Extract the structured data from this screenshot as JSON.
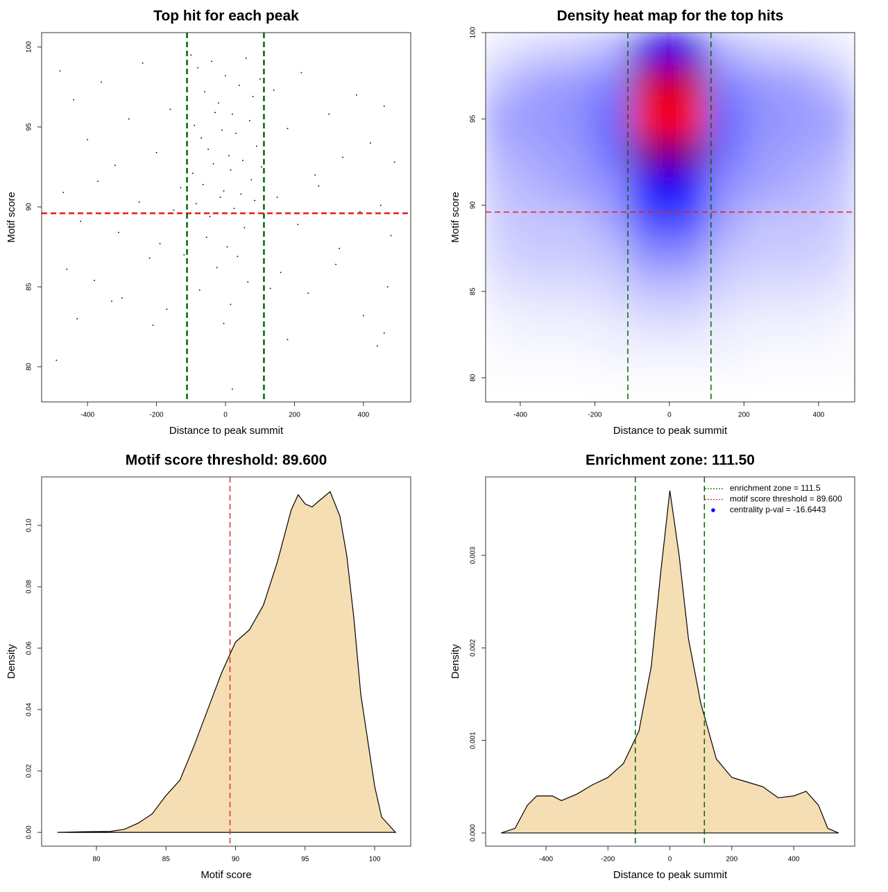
{
  "chart_data": [
    {
      "type": "scatter",
      "title": "Top hit for each peak",
      "xlabel": "Distance to peak summit",
      "ylabel": "Motif score",
      "xlim": [
        -533,
        537
      ],
      "ylim": [
        77.8,
        100.9
      ],
      "xticks": [
        -400,
        -200,
        0,
        200,
        400
      ],
      "yticks": [
        80,
        85,
        90,
        95,
        100
      ],
      "color": "#000000",
      "hlines": [
        {
          "value": 89.6,
          "color": "#e41a1c"
        }
      ],
      "vlines": [
        {
          "value": -111.5,
          "color": "#006400"
        },
        {
          "value": 111.5,
          "color": "#006400"
        }
      ],
      "x": [
        -100,
        -80,
        -60,
        -40,
        -20,
        0,
        20,
        40,
        60,
        80,
        100,
        -90,
        -70,
        -50,
        -30,
        -10,
        10,
        30,
        50,
        70,
        90,
        -95,
        -65,
        -35,
        -5,
        15,
        45,
        75,
        105,
        -85,
        -45,
        -15,
        25,
        55,
        85,
        -55,
        5,
        35,
        -25,
        65,
        -75,
        15,
        -5,
        20,
        -480,
        -440,
        -400,
        -360,
        -320,
        -280,
        -240,
        -200,
        -160,
        -130,
        140,
        180,
        220,
        260,
        300,
        340,
        380,
        420,
        460,
        490,
        -470,
        -420,
        -370,
        -310,
        -250,
        -190,
        -150,
        150,
        210,
        270,
        330,
        390,
        450,
        480,
        -460,
        -380,
        -300,
        -220,
        -170,
        160,
        240,
        320,
        400,
        470,
        -490,
        -430,
        -330,
        -120,
        130,
        440,
        460,
        -210,
        180
      ],
      "values": [
        99.5,
        98.7,
        97.2,
        99.1,
        96.5,
        98.2,
        95.8,
        97.6,
        99.3,
        96.9,
        98.0,
        95.1,
        94.3,
        93.6,
        95.9,
        94.8,
        93.2,
        94.6,
        92.9,
        95.4,
        93.8,
        92.1,
        91.4,
        92.7,
        91.0,
        92.3,
        90.8,
        91.7,
        92.5,
        90.2,
        89.4,
        90.6,
        89.9,
        88.7,
        90.4,
        88.1,
        87.5,
        86.9,
        86.2,
        85.3,
        84.8,
        83.9,
        82.7,
        78.6,
        98.5,
        96.7,
        94.2,
        97.8,
        92.6,
        95.5,
        99.0,
        93.4,
        96.1,
        91.2,
        97.3,
        94.9,
        98.4,
        92.0,
        95.8,
        93.1,
        97.0,
        94.0,
        96.3,
        92.8,
        90.9,
        89.1,
        91.6,
        88.4,
        90.3,
        87.7,
        89.8,
        90.6,
        88.9,
        91.3,
        87.4,
        89.7,
        90.1,
        88.2,
        86.1,
        85.4,
        84.3,
        86.8,
        83.6,
        85.9,
        84.6,
        86.4,
        83.2,
        85.0,
        80.4,
        83.0,
        84.1,
        87.0,
        84.9,
        81.3,
        82.1,
        82.6,
        81.7
      ]
    },
    {
      "type": "heatmap",
      "title": "Density heat map for the top hits",
      "xlabel": "Distance to peak summit",
      "ylabel": "Motif score",
      "xlim": [
        -493,
        497
      ],
      "ylim": [
        78.6,
        100
      ],
      "xticks": [
        -400,
        -200,
        0,
        200,
        400
      ],
      "yticks": [
        80,
        85,
        90,
        95,
        100
      ],
      "colors": [
        "#ffffff",
        "#0000ff",
        "#ff0000"
      ],
      "hlines": [
        {
          "value": 89.6,
          "color": "#e41a1c"
        }
      ],
      "vlines": [
        {
          "value": -111.5,
          "color": "#006400"
        },
        {
          "value": 111.5,
          "color": "#006400"
        }
      ],
      "x": [
        -450,
        -350,
        -250,
        -150,
        -50,
        50,
        150,
        250,
        350,
        450
      ],
      "y": [
        99,
        97,
        95,
        93,
        91,
        89,
        87,
        85,
        83,
        81,
        79
      ],
      "z": [
        [
          0.05,
          0.08,
          0.1,
          0.15,
          0.55,
          0.55,
          0.15,
          0.1,
          0.08,
          0.05
        ],
        [
          0.12,
          0.18,
          0.2,
          0.25,
          0.9,
          0.9,
          0.25,
          0.2,
          0.18,
          0.12
        ],
        [
          0.18,
          0.2,
          0.22,
          0.3,
          1.0,
          1.0,
          0.3,
          0.22,
          0.2,
          0.18
        ],
        [
          0.15,
          0.18,
          0.2,
          0.28,
          0.75,
          0.75,
          0.28,
          0.2,
          0.18,
          0.15
        ],
        [
          0.12,
          0.15,
          0.18,
          0.22,
          0.5,
          0.5,
          0.22,
          0.18,
          0.15,
          0.12
        ],
        [
          0.1,
          0.12,
          0.12,
          0.18,
          0.35,
          0.35,
          0.18,
          0.12,
          0.12,
          0.1
        ],
        [
          0.08,
          0.1,
          0.1,
          0.12,
          0.22,
          0.22,
          0.12,
          0.1,
          0.1,
          0.08
        ],
        [
          0.05,
          0.06,
          0.06,
          0.08,
          0.12,
          0.12,
          0.08,
          0.06,
          0.06,
          0.05
        ],
        [
          0.02,
          0.03,
          0.03,
          0.04,
          0.06,
          0.06,
          0.04,
          0.03,
          0.03,
          0.02
        ],
        [
          0.01,
          0.01,
          0.01,
          0.02,
          0.02,
          0.02,
          0.02,
          0.01,
          0.01,
          0.01
        ],
        [
          0,
          0,
          0,
          0,
          0,
          0,
          0,
          0,
          0,
          0
        ]
      ]
    },
    {
      "type": "density",
      "title": "Motif score threshold: 89.600",
      "xlabel": "Motif score",
      "ylabel": "Density",
      "xlim": [
        76.06,
        102.59
      ],
      "ylim": [
        -0.0045,
        0.1158
      ],
      "xticks": [
        80,
        85,
        90,
        95,
        100
      ],
      "yticks": [
        {
          "value": 0,
          "label": "0.00"
        },
        {
          "value": 0.02,
          "label": "0.02"
        },
        {
          "value": 0.04,
          "label": "0.04"
        },
        {
          "value": 0.06,
          "label": "0.06"
        },
        {
          "value": 0.08,
          "label": "0.08"
        },
        {
          "value": 0.1,
          "label": "0.10"
        }
      ],
      "color": "#f5deb3",
      "vlines": [
        {
          "value": 89.6,
          "color": "#cd3333"
        }
      ],
      "x": [
        77.2,
        79,
        81,
        82,
        83,
        84,
        85,
        86,
        87,
        88,
        89,
        90,
        91,
        92,
        93,
        94,
        94.5,
        95,
        95.5,
        96,
        96.8,
        97.5,
        98,
        98.5,
        99,
        100,
        100.5,
        101.5
      ],
      "values": [
        0,
        0.0002,
        0.0003,
        0.001,
        0.003,
        0.006,
        0.012,
        0.017,
        0.028,
        0.04,
        0.052,
        0.062,
        0.066,
        0.074,
        0.088,
        0.105,
        0.11,
        0.107,
        0.106,
        0.108,
        0.111,
        0.103,
        0.09,
        0.07,
        0.045,
        0.015,
        0.005,
        0
      ]
    },
    {
      "type": "density",
      "title": "Enrichment zone: 111.50",
      "xlabel": "Distance to peak summit",
      "ylabel": "Density",
      "xlim": [
        -595,
        597
      ],
      "ylim": [
        -0.000143,
        0.003848
      ],
      "xticks": [
        -400,
        -200,
        0,
        200,
        400
      ],
      "yticks": [
        {
          "value": 0,
          "label": "0.000"
        },
        {
          "value": 0.001,
          "label": "0.001"
        },
        {
          "value": 0.002,
          "label": "0.002"
        },
        {
          "value": 0.003,
          "label": "0.003"
        }
      ],
      "color": "#f5deb3",
      "vlines": [
        {
          "value": -111.5,
          "color": "#006400"
        },
        {
          "value": 111.5,
          "color": "#006400"
        }
      ],
      "legend": {
        "position": "topright",
        "entries": [
          {
            "name": "enrichment zone = 111.5",
            "color": "#006400",
            "style": "dotted"
          },
          {
            "name": "motif score threshold = 89.600",
            "color": "#e41a1c",
            "style": "dotted"
          },
          {
            "name": "centrality p-val = -16.6443",
            "color": "#0000ff",
            "style": "point"
          }
        ]
      },
      "x": [
        -545,
        -500,
        -460,
        -430,
        -380,
        -350,
        -300,
        -250,
        -200,
        -150,
        -100,
        -60,
        -30,
        0,
        30,
        60,
        100,
        150,
        200,
        250,
        300,
        350,
        400,
        440,
        480,
        510,
        545
      ],
      "values": [
        0,
        5e-05,
        0.0003,
        0.0004,
        0.0004,
        0.00035,
        0.00042,
        0.00052,
        0.0006,
        0.00075,
        0.0011,
        0.0018,
        0.0028,
        0.0037,
        0.003,
        0.0021,
        0.0014,
        0.0008,
        0.0006,
        0.00055,
        0.0005,
        0.00038,
        0.0004,
        0.00045,
        0.0003,
        5e-05,
        0
      ]
    }
  ]
}
